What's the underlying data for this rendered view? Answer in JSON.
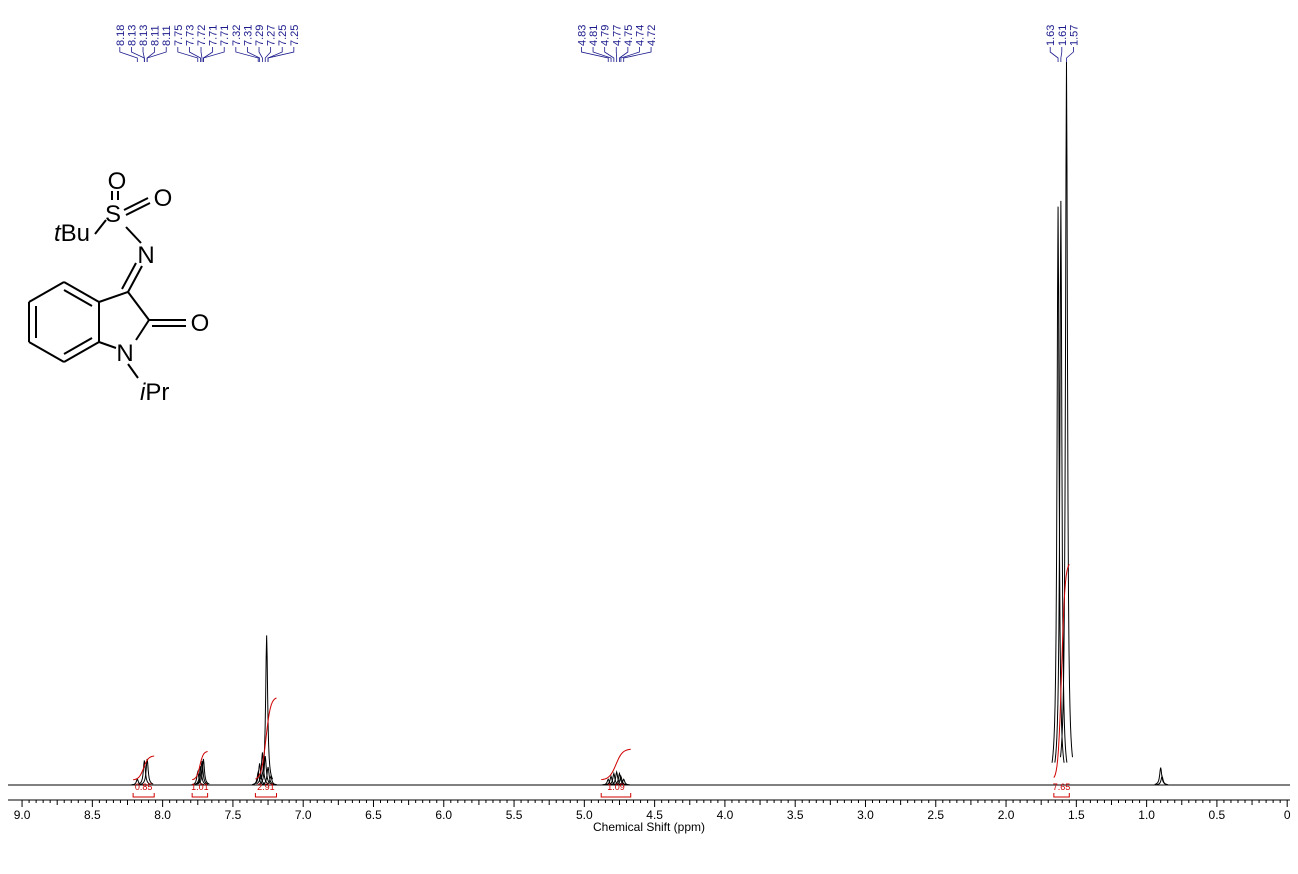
{
  "chart_data": {
    "type": "nmr",
    "x_label": "Chemical Shift (ppm)",
    "xlim": [
      9.1,
      -0.02
    ],
    "xticks": [
      {
        "value": 9,
        "label": "9.0"
      },
      8.5,
      {
        "value": 8,
        "label": "8.0"
      },
      7.5,
      {
        "value": 7,
        "label": "7.0"
      },
      6.5,
      {
        "value": 6,
        "label": "6.0"
      },
      5.5,
      {
        "value": 5,
        "label": "5.0"
      },
      4.5,
      {
        "value": 4,
        "label": "4.0"
      },
      3.5,
      {
        "value": 3,
        "label": "3.0"
      },
      2.5,
      {
        "value": 2,
        "label": "2.0"
      },
      1.5,
      {
        "value": 1,
        "label": "1.0"
      },
      0.5,
      0
    ],
    "ylim": [
      0,
      100
    ],
    "color": "#000000",
    "label_color": "#1a1a8c",
    "integral_color": "#d00000",
    "peaks": {
      "ppm": [
        8.18,
        8.13,
        8.11,
        7.75,
        7.73,
        7.72,
        7.71,
        7.32,
        7.31,
        7.29,
        7.27,
        7.26,
        7.25,
        7.23,
        4.83,
        4.81,
        4.79,
        4.77,
        4.75,
        4.74,
        4.72,
        1.63,
        1.61,
        1.57,
        0.9,
        0.89
      ],
      "height": [
        0.8,
        3.4,
        3.6,
        1.8,
        2.6,
        3.3,
        3.6,
        1.8,
        3.0,
        4.5,
        4.0,
        20.7,
        2.5,
        1.2,
        0.8,
        1.2,
        1.6,
        1.8,
        1.6,
        1.2,
        0.8,
        80,
        80.8,
        100,
        2.4,
        1.2
      ]
    },
    "peak_label_groups": [
      [
        8.18,
        8.13,
        8.13,
        8.11,
        8.11,
        7.75,
        7.73,
        7.72,
        7.71,
        7.71,
        7.32,
        7.31,
        7.29,
        7.27,
        7.25,
        7.25
      ],
      [
        4.83,
        4.81,
        4.79,
        4.77,
        4.75,
        4.74,
        4.72
      ],
      [
        1.63,
        1.61,
        1.57
      ]
    ],
    "integrals": [
      {
        "from": 8.21,
        "to": 8.06,
        "value": 0.85
      },
      {
        "from": 7.79,
        "to": 7.68,
        "value": 1.01
      },
      {
        "from": 7.34,
        "to": 7.19,
        "value": 2.91
      },
      {
        "from": 4.88,
        "to": 4.67,
        "value": 1.09
      },
      {
        "from": 1.66,
        "to": 1.55,
        "value": 7.65
      }
    ]
  },
  "structure": {
    "atoms": [
      "O",
      "S",
      "O",
      "N",
      "O",
      "N"
    ],
    "tbu": [
      "t",
      "Bu"
    ],
    "ipr": [
      "i",
      "Pr"
    ]
  }
}
